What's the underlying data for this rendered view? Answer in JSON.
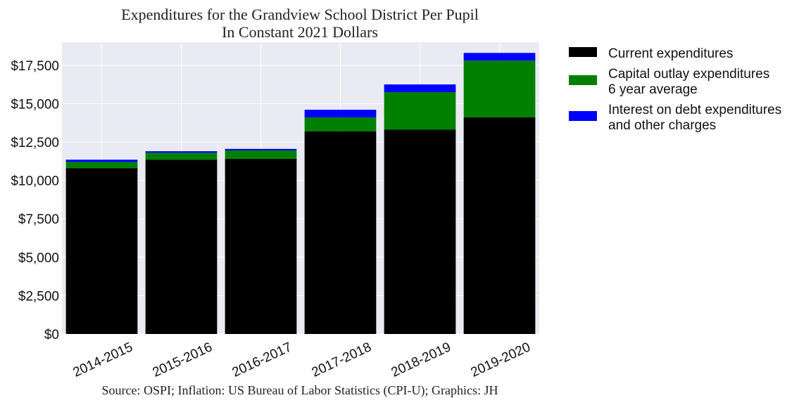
{
  "chart_data": {
    "type": "bar",
    "stacked": true,
    "title": [
      "Expenditures for the Grandview School District Per Pupil",
      "In Constant 2021 Dollars"
    ],
    "source": "Source: OSPI; Inflation: US Bureau of Labor Statistics (CPI-U); Graphics: JH",
    "categories": [
      "2014-2015",
      "2015-2016",
      "2016-2017",
      "2017-2018",
      "2018-2019",
      "2019-2020"
    ],
    "series": [
      {
        "name": "Current expenditures",
        "color": "#000000",
        "values": [
          10800,
          11350,
          11400,
          13200,
          13300,
          14100
        ]
      },
      {
        "name": "Capital outlay expenditures\n6 year average",
        "color": "#008000",
        "values": [
          400,
          450,
          550,
          900,
          2450,
          3700
        ]
      },
      {
        "name": "Interest on debt expenditures\nand other charges",
        "color": "#0000ff",
        "values": [
          150,
          100,
          100,
          500,
          500,
          500
        ]
      }
    ],
    "ylim": [
      0,
      19000
    ],
    "yticks": [
      0,
      2500,
      5000,
      7500,
      10000,
      12500,
      15000,
      17500
    ],
    "ytick_labels": [
      "$0",
      "$2,500",
      "$5,000",
      "$7,500",
      "$10,000",
      "$12,500",
      "$15,000",
      "$17,500"
    ],
    "xlabel": "",
    "ylabel": "",
    "grid": true,
    "legend_position": "outside-right",
    "background": "#eaeaf2"
  }
}
